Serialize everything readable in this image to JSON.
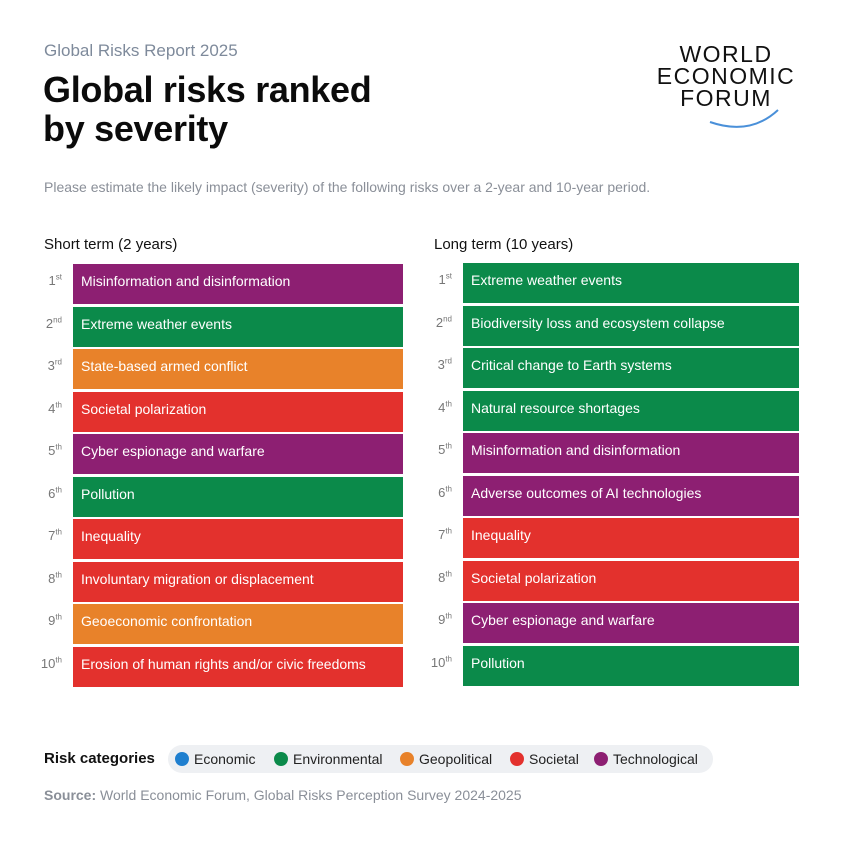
{
  "header": {
    "report_title": "Global Risks Report 2025",
    "main_title_line1": "Global risks ranked",
    "main_title_line2": "by severity",
    "subtitle": "Please estimate the likely impact (severity) of the following risks over a 2-year and 10-year period."
  },
  "logo": {
    "line1": "WORLD",
    "line2": "ECONOMIC",
    "line3": "FORUM",
    "arc_color": "#4a90d9"
  },
  "colors": {
    "Economic": "#1f7fcf",
    "Environmental": "#0b8a4a",
    "Geopolitical": "#e8822a",
    "Societal": "#e3312d",
    "Technological": "#8d1f72"
  },
  "chart_data": {
    "type": "table",
    "columns": [
      {
        "title": "Short term (2 years)",
        "rows": [
          {
            "rank": "1",
            "suffix": "st",
            "risk": "Misinformation and disinformation",
            "category": "Technological"
          },
          {
            "rank": "2",
            "suffix": "nd",
            "risk": "Extreme weather events",
            "category": "Environmental"
          },
          {
            "rank": "3",
            "suffix": "rd",
            "risk": "State-based armed conflict",
            "category": "Geopolitical"
          },
          {
            "rank": "4",
            "suffix": "th",
            "risk": "Societal polarization",
            "category": "Societal"
          },
          {
            "rank": "5",
            "suffix": "th",
            "risk": "Cyber espionage and warfare",
            "category": "Technological"
          },
          {
            "rank": "6",
            "suffix": "th",
            "risk": "Pollution",
            "category": "Environmental"
          },
          {
            "rank": "7",
            "suffix": "th",
            "risk": "Inequality",
            "category": "Societal"
          },
          {
            "rank": "8",
            "suffix": "th",
            "risk": "Involuntary migration or displacement",
            "category": "Societal"
          },
          {
            "rank": "9",
            "suffix": "th",
            "risk": "Geoeconomic confrontation",
            "category": "Geopolitical"
          },
          {
            "rank": "10",
            "suffix": "th",
            "risk": "Erosion of human rights and/or civic freedoms",
            "category": "Societal"
          }
        ]
      },
      {
        "title": "Long term (10 years)",
        "rows": [
          {
            "rank": "1",
            "suffix": "st",
            "risk": "Extreme weather events",
            "category": "Environmental"
          },
          {
            "rank": "2",
            "suffix": "nd",
            "risk": "Biodiversity loss and ecosystem collapse",
            "category": "Environmental"
          },
          {
            "rank": "3",
            "suffix": "rd",
            "risk": "Critical change to Earth systems",
            "category": "Environmental"
          },
          {
            "rank": "4",
            "suffix": "th",
            "risk": "Natural resource shortages",
            "category": "Environmental"
          },
          {
            "rank": "5",
            "suffix": "th",
            "risk": "Misinformation and disinformation",
            "category": "Technological"
          },
          {
            "rank": "6",
            "suffix": "th",
            "risk": "Adverse outcomes of AI technologies",
            "category": "Technological"
          },
          {
            "rank": "7",
            "suffix": "th",
            "risk": "Inequality",
            "category": "Societal"
          },
          {
            "rank": "8",
            "suffix": "th",
            "risk": "Societal polarization",
            "category": "Societal"
          },
          {
            "rank": "9",
            "suffix": "th",
            "risk": "Cyber espionage and warfare",
            "category": "Technological"
          },
          {
            "rank": "10",
            "suffix": "th",
            "risk": "Pollution",
            "category": "Environmental"
          }
        ]
      }
    ],
    "legend": {
      "label": "Risk categories",
      "items": [
        "Economic",
        "Environmental",
        "Geopolitical",
        "Societal",
        "Technological"
      ]
    }
  },
  "source": {
    "prefix": "Source:",
    "text": "World Economic Forum, Global Risks Perception Survey 2024-2025"
  }
}
